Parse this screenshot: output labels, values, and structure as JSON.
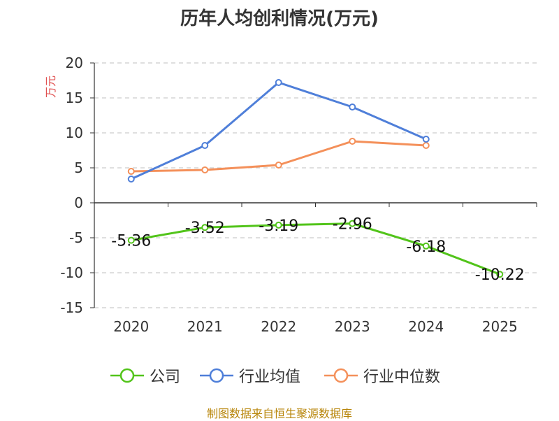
{
  "chart_data": {
    "type": "line",
    "title": "历年人均创利情况(万元)",
    "ylabel": "万元",
    "xlabel": "",
    "categories": [
      "2020",
      "2021",
      "2022",
      "2023",
      "2024",
      "2025"
    ],
    "ylim": [
      -15,
      20
    ],
    "yticks": [
      "20",
      "15",
      "10",
      "5",
      "0",
      "-5",
      "-10",
      "-15"
    ],
    "grid": true,
    "legend_position": "bottom",
    "series": [
      {
        "name": "公司",
        "color": "#52c41a",
        "values": [
          -5.36,
          -3.52,
          -3.19,
          -2.96,
          -6.18,
          -10.22
        ],
        "labels": [
          "-5.36",
          "-3.52",
          "-3.19",
          "-2.96",
          "-6.18",
          "-10.22"
        ]
      },
      {
        "name": "行业均值",
        "color": "#4f7fd9",
        "values": [
          3.4,
          8.2,
          17.2,
          13.7,
          9.1,
          null
        ]
      },
      {
        "name": "行业中位数",
        "color": "#f4905a",
        "values": [
          4.5,
          4.7,
          5.4,
          8.8,
          8.2,
          null
        ]
      }
    ]
  },
  "footer": {
    "source": "制图数据来自恒生聚源数据库"
  }
}
